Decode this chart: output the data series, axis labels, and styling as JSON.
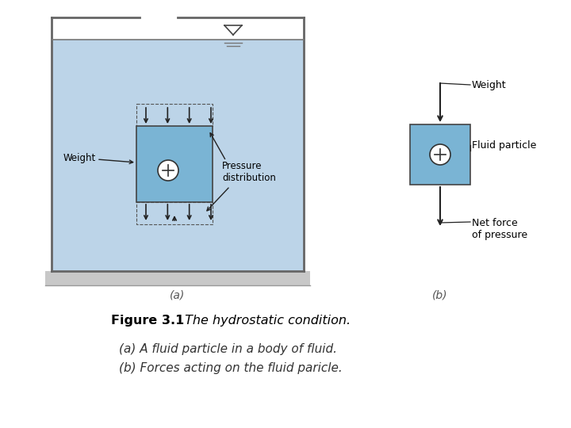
{
  "bg_color": "#ffffff",
  "fluid_color": "#bcd4e8",
  "fluid_color2": "#c8dff0",
  "tank_line_color": "#666666",
  "gray_base_color": "#c8c8c8",
  "particle_color": "#7ab4d4",
  "particle_border_color": "#444444",
  "arrow_color": "#222222",
  "label_color": "#555555",
  "title_bold": "Figure 3.1",
  "title_italic": " The hydrostatic condition.",
  "caption_line1": "(a) A fluid particle in a body of fluid.",
  "caption_line2": "(b) Forces acting on the fluid paricle.",
  "label_a": "(a)",
  "label_b": "(b)",
  "weight_label_a": "Weight",
  "pressure_label": "Pressure\ndistribution",
  "weight_label_b": "Weight",
  "fluid_particle_label": "Fluid particle",
  "net_force_label": "Net force\nof pressure"
}
